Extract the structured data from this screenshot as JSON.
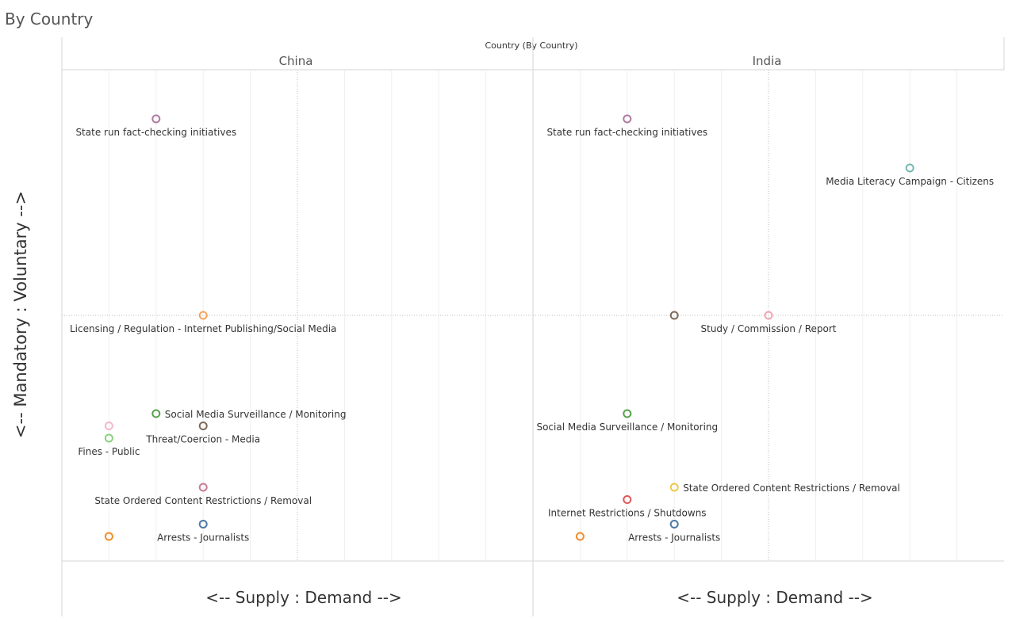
{
  "page_title": "By Country",
  "chart_data": {
    "type": "scatter",
    "column_field_label": "Country (By Country)",
    "xlabel": "<-- Supply : Demand -->",
    "ylabel": "<-- Mandatory : Voluntary -->",
    "xlim": [
      0,
      10
    ],
    "ylim": [
      0,
      10
    ],
    "grid": "vertical minor lines, dotted midlines",
    "panes": [
      {
        "name": "China",
        "points": [
          {
            "label": "State run fact-checking initiatives",
            "x": 2,
            "y": 9.0,
            "color": "#b07aa1",
            "label_pos": "below"
          },
          {
            "label": "Licensing / Regulation - Internet Publishing/Social Media",
            "x": 3,
            "y": 5.0,
            "color": "#f7a35c",
            "label_pos": "below"
          },
          {
            "label": "Social Media Surveillance / Monitoring",
            "x": 2,
            "y": 3.0,
            "color": "#59a14f",
            "label_pos": "right"
          },
          {
            "label": "",
            "x": 1,
            "y": 2.75,
            "color": "#f4b8cb",
            "label_pos": "none"
          },
          {
            "label": "Threat/Coercion - Media",
            "x": 3,
            "y": 2.75,
            "color": "#7f6a5a",
            "label_pos": "below"
          },
          {
            "label": "Fines - Public",
            "x": 1,
            "y": 2.5,
            "color": "#8cd17d",
            "label_pos": "below"
          },
          {
            "label": "State Ordered Content Restrictions / Removal",
            "x": 3,
            "y": 1.5,
            "color": "#c97b98",
            "label_pos": "below"
          },
          {
            "label": "Arrests - Journalists",
            "x": 3,
            "y": 0.75,
            "color": "#4e79a7",
            "label_pos": "below"
          },
          {
            "label": "",
            "x": 1,
            "y": 0.5,
            "color": "#f28e2b",
            "label_pos": "none"
          }
        ]
      },
      {
        "name": "India",
        "points": [
          {
            "label": "State run fact-checking initiatives",
            "x": 2,
            "y": 9.0,
            "color": "#b07aa1",
            "label_pos": "below"
          },
          {
            "label": "Media Literacy Campaign - Citizens",
            "x": 8,
            "y": 8.0,
            "color": "#76b7b2",
            "label_pos": "below"
          },
          {
            "label": "",
            "x": 3,
            "y": 5.0,
            "color": "#7f6a5a",
            "label_pos": "none"
          },
          {
            "label": "Study / Commission / Report",
            "x": 5,
            "y": 5.0,
            "color": "#f4a5b5",
            "label_pos": "below"
          },
          {
            "label": "Social Media Surveillance / Monitoring",
            "x": 2,
            "y": 3.0,
            "color": "#59a14f",
            "label_pos": "below"
          },
          {
            "label": "State Ordered Content Restrictions / Removal",
            "x": 3,
            "y": 1.5,
            "color": "#edc948",
            "label_pos": "right"
          },
          {
            "label": "Internet Restrictions / Shutdowns",
            "x": 2,
            "y": 1.25,
            "color": "#e15759",
            "label_pos": "below"
          },
          {
            "label": "Arrests - Journalists",
            "x": 3,
            "y": 0.75,
            "color": "#4e79a7",
            "label_pos": "below"
          },
          {
            "label": "",
            "x": 1,
            "y": 0.5,
            "color": "#f28e2b",
            "label_pos": "none"
          }
        ]
      }
    ]
  }
}
